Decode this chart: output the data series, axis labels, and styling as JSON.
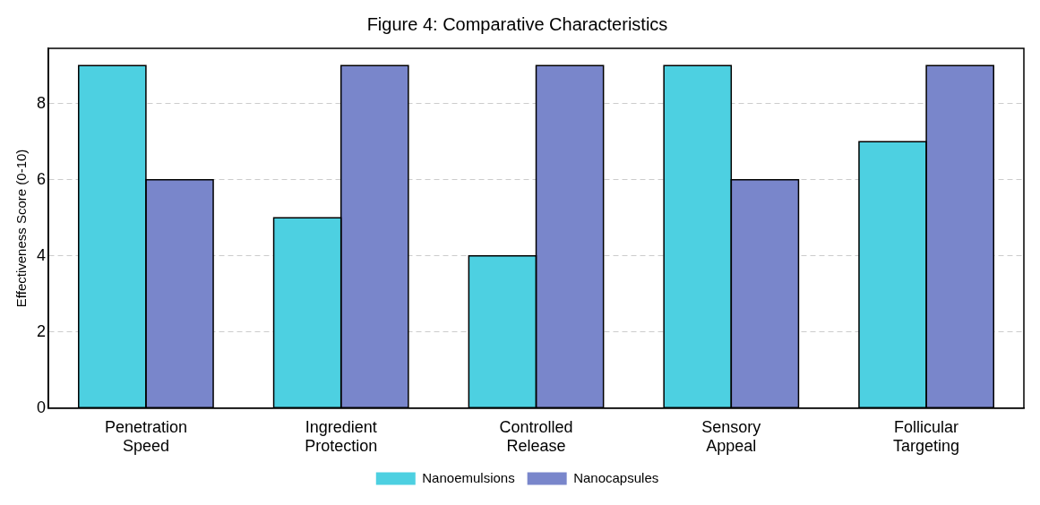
{
  "chart_data": {
    "type": "bar",
    "title": "Figure 4: Comparative Characteristics",
    "ylabel": "Effectiveness Score (0-10)",
    "categories": [
      "Penetration Speed",
      "Ingredient Protection",
      "Controlled Release",
      "Sensory Appeal",
      "Follicular Targeting"
    ],
    "series": [
      {
        "name": "Nanoemulsions",
        "color": "#4dd0e1",
        "values": [
          9,
          5,
          4,
          9,
          7
        ]
      },
      {
        "name": "Nanocapsules",
        "color": "#7986cb",
        "values": [
          6,
          9,
          9,
          6,
          9
        ]
      }
    ],
    "ylim": [
      0,
      9.45
    ],
    "yticks": [
      0,
      2,
      4,
      6,
      8
    ],
    "grid": "y",
    "legend": "bottom"
  }
}
